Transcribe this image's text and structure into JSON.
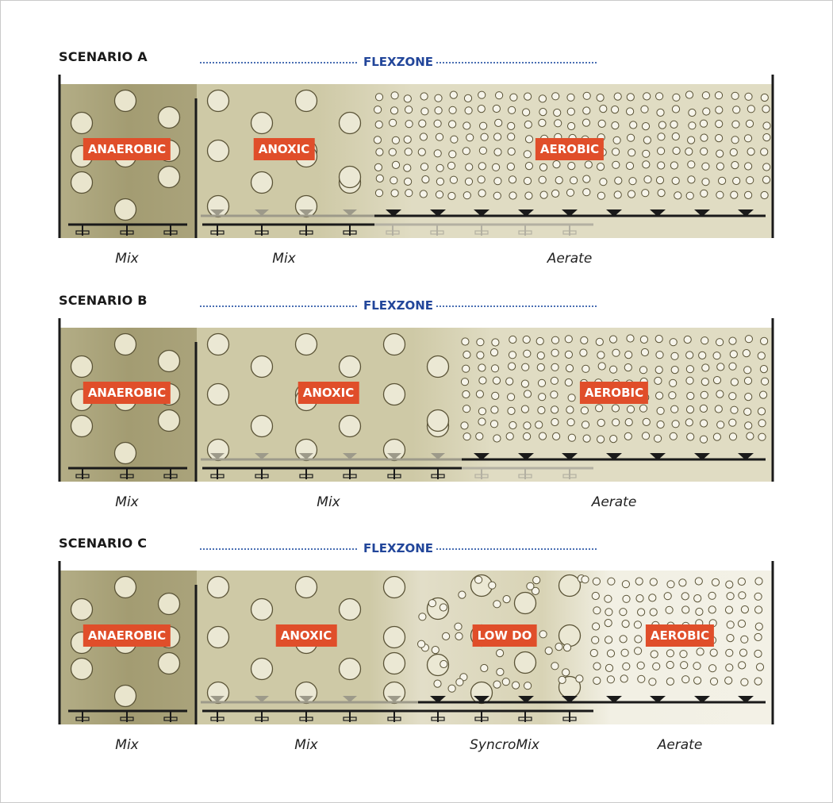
{
  "flexzone_label": "FLEXZONE",
  "colors": {
    "anaerobic_fill": "#a9a27a",
    "anoxic_fill": "#cec9a6",
    "aerobic_fill": "#e0dcc3",
    "low_do_fill": "#d8d3b5",
    "label_bg": "#e04e2a",
    "flexzone_text": "#22469a"
  },
  "scenarios": [
    {
      "title": "SCENARIO A",
      "zones": [
        {
          "label": "ANAEROBIC",
          "type": "anaerobic"
        },
        {
          "label": "ANOXIC",
          "type": "anoxic"
        },
        {
          "label": "AEROBIC",
          "type": "aerobic"
        }
      ],
      "operations": [
        "Mix",
        "Mix",
        "Aerate"
      ]
    },
    {
      "title": "SCENARIO B",
      "zones": [
        {
          "label": "ANAEROBIC",
          "type": "anaerobic"
        },
        {
          "label": "ANOXIC",
          "type": "anoxic"
        },
        {
          "label": "AEROBIC",
          "type": "aerobic"
        }
      ],
      "operations": [
        "Mix",
        "Mix",
        "Aerate"
      ]
    },
    {
      "title": "SCENARIO C",
      "zones": [
        {
          "label": "ANAEROBIC",
          "type": "anaerobic"
        },
        {
          "label": "ANOXIC",
          "type": "anoxic"
        },
        {
          "label": "LOW DO",
          "type": "low_do"
        },
        {
          "label": "AEROBIC",
          "type": "aerobic"
        }
      ],
      "operations": [
        "Mix",
        "Mix",
        "SyncroMix",
        "Aerate"
      ]
    }
  ]
}
